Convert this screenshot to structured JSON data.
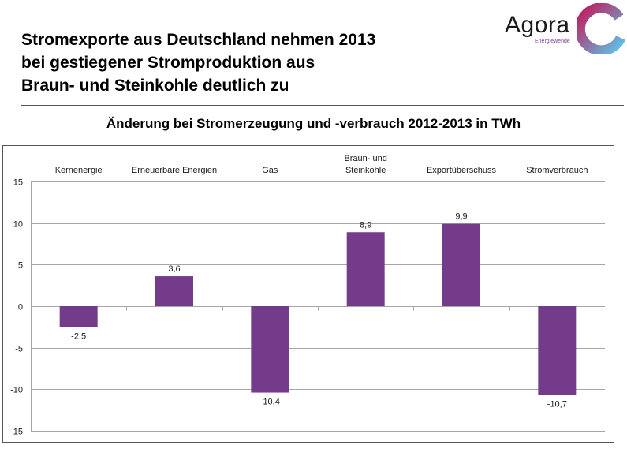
{
  "header": {
    "headline_lines": [
      "Stromexporte aus Deutschland nehmen 2013",
      "bei gestiegener Stromproduktion aus",
      "Braun- und Steinkohle deutlich zu"
    ],
    "logo_name": "Agora",
    "logo_sub": "Energiewende"
  },
  "colors": {
    "bar": "#733b8a",
    "grid": "#a6a6a6",
    "logo_arc_from": "#c2185b",
    "logo_arc_to": "#5cc4e8"
  },
  "chart_data": {
    "type": "bar",
    "title": "Änderung bei Stromerzeugung und -verbrauch 2012-2013 in TWh",
    "categories": [
      [
        "Kernenergie"
      ],
      [
        "Erneuerbare Energien"
      ],
      [
        "Gas"
      ],
      [
        "Braun- und",
        "Steinkohle"
      ],
      [
        "Exportüberschuss"
      ],
      [
        "Stromverbrauch"
      ]
    ],
    "values": [
      -2.5,
      3.6,
      -10.4,
      8.9,
      9.9,
      -10.7
    ],
    "value_labels": [
      "-2,5",
      "3,6",
      "-10,4",
      "8,9",
      "9,9",
      "-10,7"
    ],
    "ylim": [
      -15,
      15
    ],
    "yticks": [
      15,
      10,
      5,
      0,
      -5,
      -10,
      -15
    ],
    "grid": true,
    "legend": "none"
  }
}
